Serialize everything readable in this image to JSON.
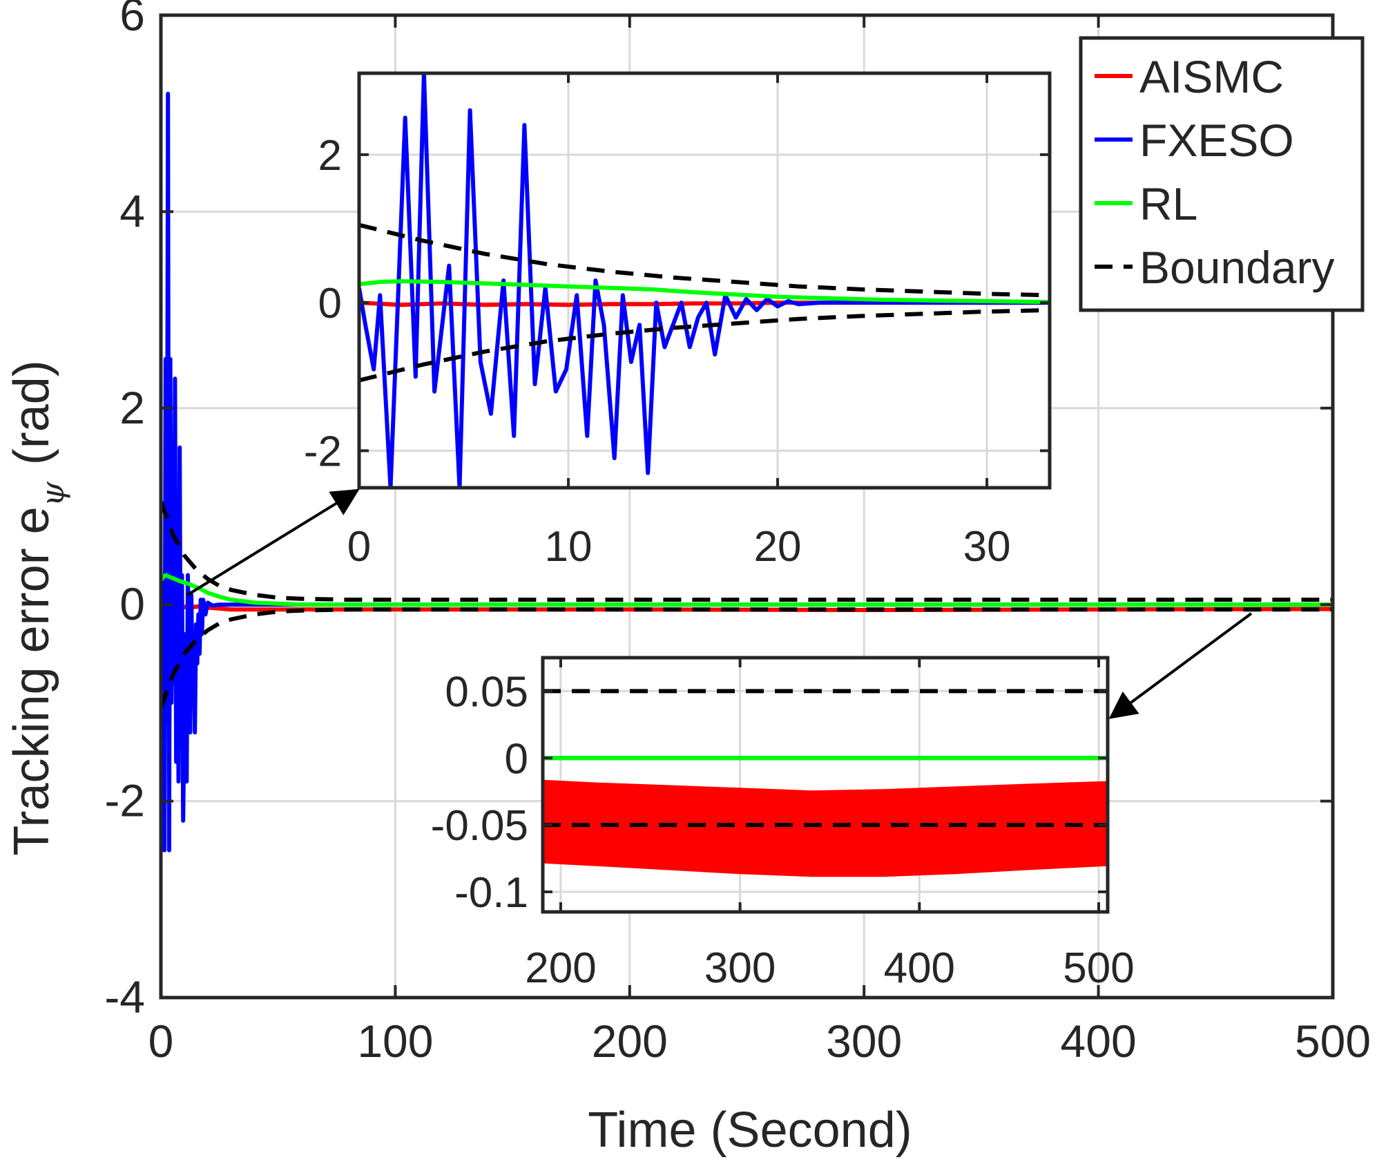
{
  "chart_data": [
    {
      "type": "line",
      "panel": "main",
      "xlabel": "Time (Second)",
      "ylabel": "Tracking error e",
      "ylabel_subscript": "ψ",
      "ylabel_unit": "(rad)",
      "xlim": [
        0,
        500
      ],
      "ylim": [
        -4,
        6
      ],
      "xticks": [
        0,
        100,
        200,
        300,
        400,
        500
      ],
      "xtick_labels": [
        "0",
        "100",
        "200",
        "300",
        "400",
        "500"
      ],
      "yticks": [
        -4,
        -2,
        0,
        2,
        4,
        6
      ],
      "ytick_labels": [
        "-4",
        "-2",
        "0",
        "2",
        "4",
        "6"
      ],
      "grid": true,
      "legend": {
        "placement": "top-right",
        "entries": [
          {
            "label": "AISMC",
            "color": "#ff0000",
            "style": "solid"
          },
          {
            "label": "FXESO",
            "color": "#0000ff",
            "style": "solid"
          },
          {
            "label": "RL",
            "color": "#00ff00",
            "style": "solid"
          },
          {
            "label": "Boundary",
            "color": "#000000",
            "style": "dashed"
          }
        ]
      },
      "series": [
        {
          "name": "AISMC",
          "color": "#ff0000",
          "x": [
            0,
            1,
            3,
            5,
            8,
            12,
            16,
            20,
            25,
            30,
            40,
            60,
            100,
            200,
            300,
            400,
            500
          ],
          "y": [
            0,
            -0.03,
            -0.02,
            -0.03,
            -0.02,
            -0.03,
            -0.02,
            -0.03,
            -0.04,
            -0.05,
            -0.05,
            -0.05,
            -0.05,
            -0.05,
            -0.055,
            -0.05,
            -0.045
          ]
        },
        {
          "name": "FXESO",
          "color": "#0000ff",
          "x": [
            0,
            0.5,
            1,
            1.5,
            2,
            2.5,
            3,
            3.5,
            4,
            4.5,
            5,
            5.5,
            6,
            6.5,
            7,
            7.5,
            8,
            8.5,
            9,
            9.5,
            10,
            10.5,
            11,
            11.5,
            12,
            12.5,
            13,
            13.5,
            14,
            14.5,
            15,
            15.5,
            16,
            16.5,
            17,
            17.5,
            18,
            19,
            20,
            22,
            25,
            30,
            40,
            60,
            100,
            200,
            300,
            400,
            500
          ],
          "y": [
            0.3,
            -1.0,
            0.2,
            -2.5,
            2.5,
            -1.2,
            5.2,
            -2.5,
            2.5,
            -1.0,
            0.5,
            -0.8,
            2.3,
            -1.6,
            0.3,
            -1.8,
            1.6,
            -1.3,
            0.3,
            -2.2,
            -1.2,
            -0.3,
            -1.8,
            0.3,
            -0.5,
            -1.3,
            0.1,
            -0.9,
            -0.3,
            -1.3,
            -0.2,
            -0.6,
            -0.1,
            -0.5,
            0.05,
            -0.3,
            0.05,
            -0.1,
            0.02,
            -0.01,
            0.0,
            0.0,
            0.0,
            0.0,
            0.0,
            0.0,
            0.0,
            0.0,
            0.0
          ]
        },
        {
          "name": "RL",
          "color": "#00ff00",
          "x": [
            0,
            1,
            2,
            3,
            5,
            8,
            12,
            16,
            20,
            25,
            30,
            40,
            60,
            100,
            200,
            300,
            400,
            500
          ],
          "y": [
            0.25,
            0.28,
            0.3,
            0.29,
            0.27,
            0.24,
            0.21,
            0.17,
            0.12,
            0.08,
            0.05,
            0.02,
            0.0,
            0.0,
            0.0,
            0.0,
            0.0,
            0.0
          ]
        },
        {
          "name": "Boundary (upper)",
          "color": "#000000",
          "x": [
            0,
            5,
            10,
            15,
            20,
            25,
            30,
            40,
            50,
            60,
            80,
            100,
            200,
            300,
            400,
            500
          ],
          "y": [
            1.05,
            0.72,
            0.5,
            0.36,
            0.26,
            0.19,
            0.15,
            0.1,
            0.07,
            0.06,
            0.05,
            0.05,
            0.05,
            0.05,
            0.05,
            0.05
          ]
        },
        {
          "name": "Boundary (lower)",
          "color": "#000000",
          "x": [
            0,
            5,
            10,
            15,
            20,
            25,
            30,
            40,
            50,
            60,
            80,
            100,
            200,
            300,
            400,
            500
          ],
          "y": [
            -1.05,
            -0.72,
            -0.5,
            -0.36,
            -0.26,
            -0.19,
            -0.15,
            -0.1,
            -0.07,
            -0.06,
            -0.05,
            -0.05,
            -0.05,
            -0.05,
            -0.05,
            -0.05
          ]
        }
      ]
    },
    {
      "type": "line",
      "panel": "inset-top",
      "xlim": [
        0,
        33
      ],
      "ylim": [
        -2.5,
        3.1
      ],
      "xticks": [
        0,
        10,
        20,
        30
      ],
      "xtick_labels": [
        "0",
        "10",
        "20",
        "30"
      ],
      "yticks": [
        -2,
        0,
        2
      ],
      "ytick_labels": [
        "-2",
        "0",
        "2"
      ],
      "grid": true,
      "series": [
        {
          "name": "AISMC",
          "color": "#ff0000",
          "x": [
            0,
            2,
            4,
            6,
            8,
            10,
            12,
            14,
            16,
            18,
            20,
            25,
            30,
            33
          ],
          "y": [
            0,
            -0.03,
            -0.01,
            -0.03,
            -0.02,
            -0.03,
            -0.02,
            -0.02,
            -0.01,
            -0.01,
            0.0,
            0.0,
            0.0,
            0.0
          ]
        },
        {
          "name": "FXESO",
          "color": "#0000ff",
          "x": [
            0,
            0.3,
            0.7,
            1.0,
            1.5,
            2.2,
            2.7,
            3.1,
            3.6,
            4.3,
            4.8,
            5.3,
            5.8,
            6.3,
            6.9,
            7.4,
            7.9,
            8.4,
            8.9,
            9.4,
            9.9,
            10.4,
            10.9,
            11.3,
            11.7,
            12.2,
            12.6,
            13.0,
            13.4,
            13.8,
            14.2,
            14.6,
            15.0,
            15.4,
            15.8,
            16.2,
            16.6,
            17.0,
            17.5,
            18.0,
            18.5,
            19.0,
            19.5,
            20.0,
            20.5,
            21.0,
            22.0,
            33.0
          ],
          "y": [
            0.2,
            -0.3,
            -0.9,
            0.1,
            -2.5,
            2.5,
            -1.0,
            3.1,
            -1.2,
            0.5,
            -2.5,
            2.6,
            -0.8,
            -1.5,
            0.3,
            -1.8,
            2.4,
            -1.1,
            0.2,
            -1.2,
            -0.9,
            0.1,
            -1.8,
            0.3,
            -0.3,
            -2.1,
            0.1,
            -0.8,
            -0.3,
            -2.3,
            0.0,
            -0.6,
            -0.3,
            0.0,
            -0.6,
            -0.2,
            0.0,
            -0.7,
            0.1,
            -0.2,
            0.05,
            -0.1,
            0.05,
            -0.05,
            0.02,
            -0.02,
            0.0,
            0.0
          ]
        },
        {
          "name": "RL",
          "color": "#00ff00",
          "x": [
            0,
            1,
            2,
            4,
            6,
            8,
            10,
            12,
            14,
            16,
            18,
            20,
            25,
            30,
            33
          ],
          "y": [
            0.25,
            0.28,
            0.29,
            0.28,
            0.26,
            0.24,
            0.22,
            0.2,
            0.18,
            0.14,
            0.11,
            0.08,
            0.04,
            0.02,
            0.01
          ]
        },
        {
          "name": "Boundary (upper)",
          "color": "#000000",
          "x": [
            0,
            3,
            6,
            9,
            12,
            15,
            18,
            21,
            24,
            27,
            30,
            33
          ],
          "y": [
            1.05,
            0.84,
            0.66,
            0.52,
            0.42,
            0.34,
            0.28,
            0.22,
            0.18,
            0.15,
            0.12,
            0.1
          ]
        },
        {
          "name": "Boundary (lower)",
          "color": "#000000",
          "x": [
            0,
            3,
            6,
            9,
            12,
            15,
            18,
            21,
            24,
            27,
            30,
            33
          ],
          "y": [
            -1.05,
            -0.84,
            -0.66,
            -0.52,
            -0.42,
            -0.34,
            -0.28,
            -0.22,
            -0.18,
            -0.15,
            -0.12,
            -0.1
          ]
        }
      ]
    },
    {
      "type": "line",
      "panel": "inset-bottom",
      "xlim": [
        190,
        505
      ],
      "ylim": [
        -0.115,
        0.075
      ],
      "xticks": [
        200,
        300,
        400,
        500
      ],
      "xtick_labels": [
        "200",
        "300",
        "400",
        "500"
      ],
      "yticks": [
        -0.1,
        -0.05,
        0,
        0.05
      ],
      "ytick_labels": [
        "-0.1",
        "-0.05",
        "0",
        "0.05"
      ],
      "grid": true,
      "series": [
        {
          "name": "AISMC",
          "color": "#ff0000",
          "band": true,
          "x": [
            190,
            220,
            260,
            300,
            340,
            380,
            420,
            460,
            505
          ],
          "y_upper": [
            -0.017,
            -0.019,
            -0.021,
            -0.023,
            -0.025,
            -0.024,
            -0.022,
            -0.02,
            -0.018
          ],
          "y_lower": [
            -0.078,
            -0.08,
            -0.083,
            -0.086,
            -0.088,
            -0.088,
            -0.086,
            -0.083,
            -0.08
          ]
        },
        {
          "name": "FXESO",
          "color": "#0000ff",
          "x": [
            190,
            505
          ],
          "y": [
            0,
            0
          ]
        },
        {
          "name": "RL",
          "color": "#00ff00",
          "x": [
            190,
            505
          ],
          "y": [
            0,
            0
          ]
        },
        {
          "name": "Boundary (upper)",
          "color": "#000000",
          "x": [
            190,
            505
          ],
          "y": [
            0.05,
            0.05
          ]
        },
        {
          "name": "Boundary (lower)",
          "color": "#000000",
          "x": [
            190,
            505
          ],
          "y": [
            -0.05,
            -0.05
          ]
        }
      ]
    }
  ]
}
